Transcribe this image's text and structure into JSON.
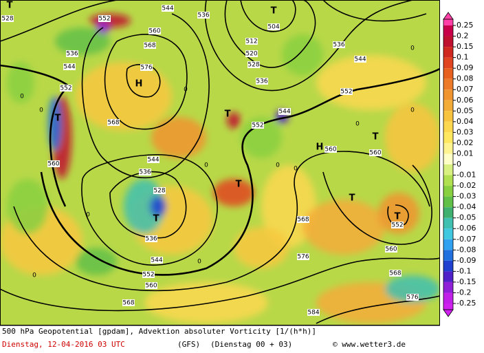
{
  "colorbar": {
    "ticks": [
      0.25,
      0.2,
      0.15,
      0.1,
      0.09,
      0.08,
      0.07,
      0.06,
      0.05,
      0.04,
      0.03,
      0.02,
      0.01,
      0,
      -0.01,
      -0.02,
      -0.03,
      -0.04,
      -0.05,
      -0.06,
      -0.07,
      -0.08,
      -0.09,
      -0.1,
      -0.15,
      -0.2,
      -0.25
    ],
    "colors": [
      "#c8004a",
      "#c01030",
      "#d02820",
      "#e04420",
      "#e86020",
      "#ec7a28",
      "#f09430",
      "#f4ac38",
      "#f8c440",
      "#fcd850",
      "#ffe860",
      "#fff490",
      "#ffffc8",
      "#d8f080",
      "#b0e050",
      "#88d040",
      "#60c048",
      "#40b070",
      "#40c0b0",
      "#40c8e0",
      "#30a0f0",
      "#2070e0",
      "#2040d0",
      "#5020c8",
      "#9020d8",
      "#c020e8"
    ]
  },
  "contour_labels": [
    528,
    552,
    544,
    536,
    560,
    568,
    576,
    536,
    544,
    552,
    568,
    560,
    544,
    536,
    528,
    536,
    544,
    552,
    560,
    568,
    504,
    512,
    520,
    528,
    536,
    544,
    552,
    552,
    544,
    536,
    560,
    568,
    576,
    584,
    560,
    568,
    576,
    552,
    560,
    0,
    0,
    0,
    0,
    0,
    0,
    0,
    0,
    0,
    0,
    0,
    0
  ],
  "pressure_centers": [
    "T",
    "T",
    "H",
    "T",
    "T",
    "H",
    "T",
    "T",
    "T",
    "T",
    "T"
  ],
  "footer": {
    "title": "500 hPa Geopotential [gpdam], Advektion absoluter Vorticity [1/(h*h)]",
    "date": "Dienstag, 12-04-2016  03 UTC",
    "model": "(GFS)",
    "run": "(Dienstag 00 + 03)",
    "source": "© www.wetter3.de"
  }
}
